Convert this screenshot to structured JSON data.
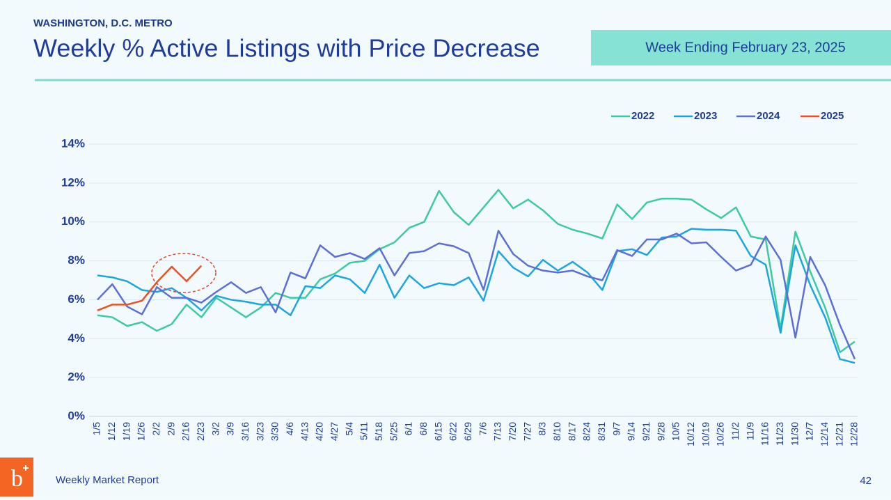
{
  "page": {
    "logo": "b",
    "footer": "Weekly Market Report",
    "page_number": "42"
  },
  "chart_data": {
    "type": "line",
    "subtitle": "WASHINGTON, D.C. METRO",
    "title": "Weekly % Active Listings with Price Decrease",
    "annotation": "Week Ending February 23, 2025",
    "categories": [
      "1/5",
      "1/12",
      "1/19",
      "1/26",
      "2/2",
      "2/9",
      "2/16",
      "2/23",
      "3/2",
      "3/9",
      "3/16",
      "3/23",
      "3/30",
      "4/6",
      "4/13",
      "4/20",
      "4/27",
      "5/4",
      "5/11",
      "5/18",
      "5/25",
      "6/1",
      "6/8",
      "6/15",
      "6/22",
      "6/29",
      "7/6",
      "7/13",
      "7/20",
      "7/27",
      "8/3",
      "8/10",
      "8/17",
      "8/24",
      "8/31",
      "9/7",
      "9/14",
      "9/21",
      "9/28",
      "10/5",
      "10/12",
      "10/19",
      "10/26",
      "11/2",
      "11/9",
      "11/16",
      "11/23",
      "11/30",
      "12/7",
      "12/14",
      "12/21",
      "12/28"
    ],
    "series": [
      {
        "name": "2022",
        "color": "#3ccaa2",
        "values": [
          5.2,
          5.1,
          4.65,
          4.85,
          4.4,
          4.75,
          5.75,
          5.1,
          6.1,
          5.6,
          5.1,
          5.6,
          6.35,
          6.1,
          6.1,
          7.05,
          7.35,
          7.9,
          8.0,
          8.6,
          8.95,
          9.7,
          10.0,
          11.6,
          10.5,
          9.85,
          10.75,
          11.65,
          10.7,
          11.15,
          10.6,
          9.9,
          9.6,
          9.4,
          9.15,
          10.9,
          10.15,
          11.0,
          11.2,
          11.2,
          11.15,
          10.65,
          10.2,
          10.75,
          9.25,
          9.1,
          4.5,
          9.5,
          7.45,
          5.6,
          3.3,
          3.85
        ]
      },
      {
        "name": "2023",
        "color": "#1ca6df",
        "values": [
          7.25,
          7.15,
          6.95,
          6.5,
          6.4,
          6.6,
          6.1,
          5.45,
          6.2,
          6.0,
          5.9,
          5.75,
          5.75,
          5.2,
          6.7,
          6.6,
          7.25,
          7.05,
          6.35,
          7.8,
          6.1,
          7.25,
          6.6,
          6.85,
          6.75,
          7.15,
          5.95,
          8.5,
          7.65,
          7.2,
          8.05,
          7.5,
          7.95,
          7.4,
          6.5,
          8.5,
          8.6,
          8.3,
          9.2,
          9.25,
          9.65,
          9.6,
          9.6,
          9.55,
          8.25,
          7.8,
          4.3,
          8.8,
          6.75,
          5.1,
          2.95,
          2.75
        ]
      },
      {
        "name": "2024",
        "color": "#5b6fd6",
        "values": [
          6.0,
          6.8,
          5.65,
          5.25,
          6.65,
          6.1,
          6.1,
          5.85,
          6.4,
          6.9,
          6.35,
          6.65,
          5.35,
          7.4,
          7.1,
          8.8,
          8.2,
          8.4,
          8.1,
          8.65,
          7.25,
          8.4,
          8.5,
          8.9,
          8.75,
          8.4,
          6.5,
          9.55,
          8.35,
          7.75,
          7.5,
          7.4,
          7.5,
          7.2,
          7.0,
          8.55,
          8.25,
          9.1,
          9.1,
          9.4,
          8.9,
          8.95,
          8.2,
          7.5,
          7.8,
          9.25,
          8.05,
          4.05,
          8.2,
          6.75,
          4.7,
          2.95
        ]
      },
      {
        "name": "2025",
        "color": "#f04e23",
        "values": [
          5.45,
          5.75,
          5.75,
          5.95,
          6.9,
          7.7,
          6.95,
          7.75,
          null,
          null,
          null,
          null,
          null,
          null,
          null,
          null,
          null,
          null,
          null,
          null,
          null,
          null,
          null,
          null,
          null,
          null,
          null,
          null,
          null,
          null,
          null,
          null,
          null,
          null,
          null,
          null,
          null,
          null,
          null,
          null,
          null,
          null,
          null,
          null,
          null,
          null,
          null,
          null,
          null,
          null,
          null,
          null
        ]
      }
    ],
    "ylim": [
      0,
      14
    ],
    "yticks": [
      {
        "value": 0,
        "label": "0%"
      },
      {
        "value": 2,
        "label": "2%"
      },
      {
        "value": 4,
        "label": "4%"
      },
      {
        "value": 6,
        "label": "6%"
      },
      {
        "value": 8,
        "label": "8%"
      },
      {
        "value": 10,
        "label": "10%"
      },
      {
        "value": 12,
        "label": "12%"
      },
      {
        "value": 14,
        "label": "14%"
      }
    ],
    "grid": true,
    "legend": "top-right"
  }
}
